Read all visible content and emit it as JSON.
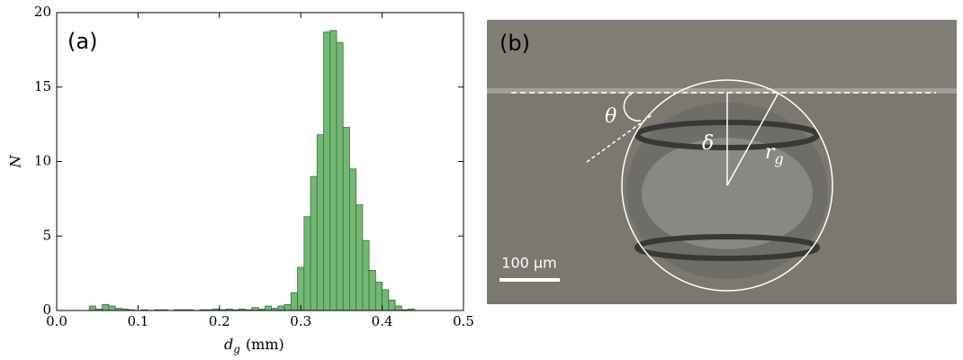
{
  "chart_data": {
    "type": "histogram",
    "annotation": "(a)",
    "xlabel": {
      "symbol": "d",
      "subscript": "g",
      "unit": "(mm)"
    },
    "ylabel": "N",
    "color": "#72b872",
    "edgecolor": "#3d6e3d",
    "bins": [
      0.04,
      0.048,
      0.056,
      0.064,
      0.072,
      0.08,
      0.088,
      0.096,
      0.104,
      0.112,
      0.12,
      0.128,
      0.136,
      0.144,
      0.152,
      0.16,
      0.168,
      0.176,
      0.184,
      0.192,
      0.2,
      0.208,
      0.216,
      0.224,
      0.232,
      0.24,
      0.248,
      0.256,
      0.264,
      0.272,
      0.28,
      0.288,
      0.296,
      0.304,
      0.312,
      0.32,
      0.328,
      0.336,
      0.344,
      0.352,
      0.36,
      0.368,
      0.376,
      0.384,
      0.392,
      0.4,
      0.408,
      0.416,
      0.424,
      0.432,
      0.44
    ],
    "values": [
      0.3,
      0.1,
      0.4,
      0.3,
      0.15,
      0.1,
      0.05,
      0,
      0.05,
      0,
      0.05,
      0.05,
      0,
      0.05,
      0.05,
      0.05,
      0,
      0.05,
      0.05,
      0.1,
      0.05,
      0.1,
      0.05,
      0.1,
      0.05,
      0.2,
      0.1,
      0.3,
      0.15,
      0.3,
      0.4,
      1.2,
      2.9,
      6.3,
      9.0,
      11.8,
      18.7,
      18.8,
      18.0,
      12.3,
      9.5,
      7.1,
      4.7,
      2.7,
      1.9,
      1.4,
      0.7,
      0.3,
      0.05,
      0.1
    ],
    "xlim": [
      0,
      0.5
    ],
    "xticks": [
      {
        "value": 0,
        "label": "0.0"
      },
      0.1,
      0.2,
      0.3,
      0.4,
      0.5
    ],
    "ylim": [
      0,
      20
    ],
    "yticks": [
      0,
      5,
      10,
      15,
      20
    ]
  },
  "photo": {
    "panel_label": "(b)",
    "angle_label": "θ",
    "depth_label": "δ",
    "radius_label": {
      "symbol": "r",
      "subscript": "g"
    },
    "scale_bar_label": "100 μm"
  }
}
